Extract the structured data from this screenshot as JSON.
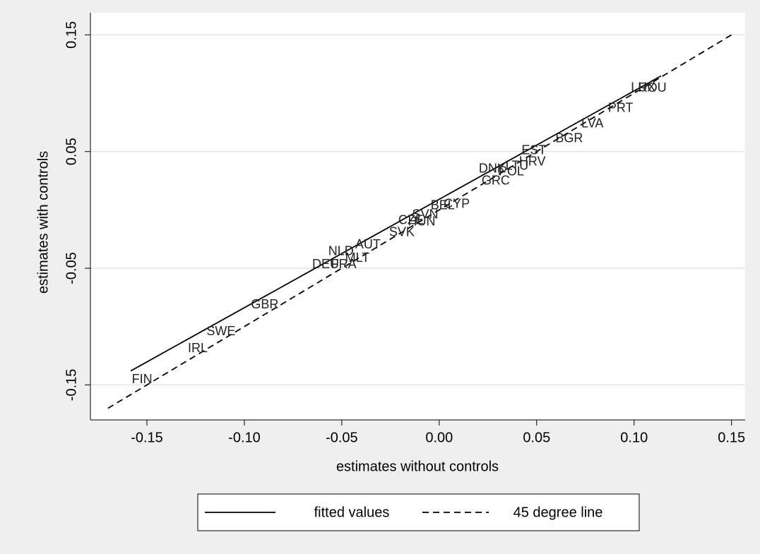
{
  "chart_data": {
    "type": "scatter",
    "x_label": "estimates without controls",
    "y_label": "estimates with controls",
    "points": {
      "labels": [
        "FIN",
        "IRL",
        "SWE",
        "GBR",
        "DEU",
        "FRA",
        "NLD",
        "MLT",
        "AUT",
        "SVK",
        "CZE",
        "HUN",
        "SVN",
        "BEL",
        "CYP",
        "GRC",
        "DNK",
        "POL",
        "LTU",
        "HRV",
        "EST",
        "BGR",
        "LVA",
        "PRT",
        "LUX",
        "ROU"
      ],
      "x": [
        -0.1525,
        -0.1239,
        -0.112,
        -0.0895,
        -0.0583,
        -0.049,
        -0.0504,
        -0.042,
        -0.0366,
        -0.0192,
        -0.0145,
        -0.009,
        -0.0072,
        0.0018,
        0.009,
        0.029,
        0.0272,
        0.037,
        0.0399,
        0.0478,
        0.0486,
        0.0667,
        0.0786,
        0.0931,
        0.1047,
        0.1094
      ],
      "y": [
        -0.1458,
        -0.119,
        -0.1045,
        -0.0815,
        -0.047,
        -0.047,
        -0.036,
        -0.0415,
        -0.03,
        -0.0197,
        -0.0094,
        -0.0106,
        -0.0045,
        0.0033,
        0.0045,
        0.0245,
        0.0348,
        0.0324,
        0.0373,
        0.041,
        0.0506,
        0.0609,
        0.0736,
        0.087,
        0.1045,
        0.104
      ]
    },
    "series": [
      {
        "name": "fitted values",
        "dash": "solid",
        "color": "#000000",
        "x": [
          -0.1583,
          0.1138
        ],
        "values": [
          -0.138,
          0.1148
        ]
      },
      {
        "name": "45 degree line",
        "dash": "dashed",
        "color": "#000000",
        "x": [
          -0.17,
          0.15
        ],
        "values": [
          -0.17,
          0.15
        ]
      }
    ],
    "xlim": [
      -0.179,
      0.157
    ],
    "ylim": [
      -0.18,
      0.169
    ],
    "xticks": [
      -0.15,
      {
        "value": -0.1,
        "label": "-0.10"
      },
      -0.05,
      {
        "value": 0,
        "label": "0.00"
      },
      0.05,
      {
        "value": 0.1,
        "label": "0.10"
      },
      0.15
    ],
    "yticks": [
      -0.15,
      -0.05,
      0.05,
      0.15
    ],
    "grid": true,
    "legend": "bottom"
  }
}
